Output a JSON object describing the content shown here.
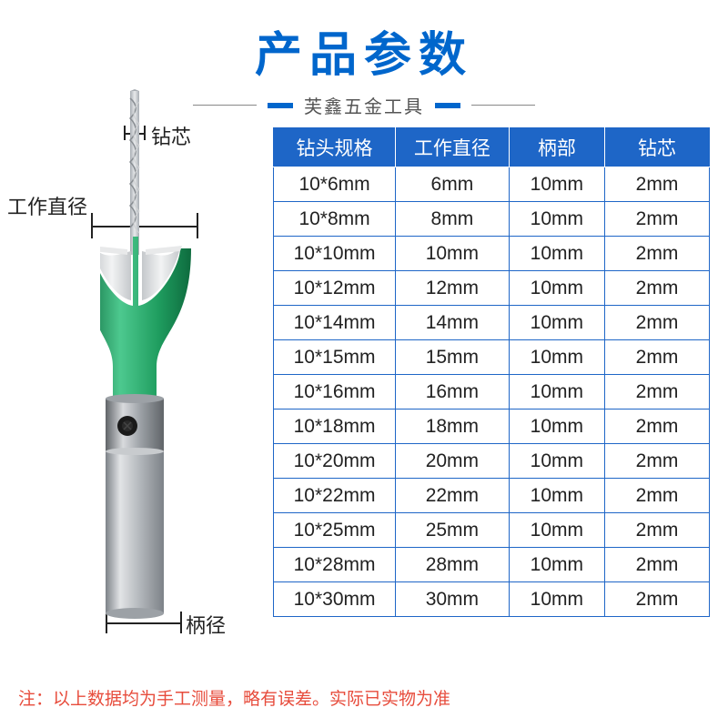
{
  "header": {
    "title": "产品参数",
    "subtitle": "芙鑫五金工具",
    "title_color": "#0066cc",
    "title_fontsize": 52,
    "subtitle_fontsize": 20,
    "subtitle_color": "#555555"
  },
  "labels": {
    "core": "钻芯",
    "work_diameter": "工作直径",
    "shank_diameter": "柄径",
    "label_fontsize": 22,
    "label_color": "#222222"
  },
  "table": {
    "header_bg": "#1e66c7",
    "header_color": "#ffffff",
    "border_color": "#1e66c7",
    "cell_bg": "#ffffff",
    "cell_color": "#222222",
    "cell_fontsize": 21,
    "columns": [
      "钻头规格",
      "工作直径",
      "柄部",
      "钻芯"
    ],
    "column_widths_pct": [
      28,
      26,
      22,
      24
    ],
    "rows": [
      [
        "10*6mm",
        "6mm",
        "10mm",
        "2mm"
      ],
      [
        "10*8mm",
        "8mm",
        "10mm",
        "2mm"
      ],
      [
        "10*10mm",
        "10mm",
        "10mm",
        "2mm"
      ],
      [
        "10*12mm",
        "12mm",
        "10mm",
        "2mm"
      ],
      [
        "10*14mm",
        "14mm",
        "10mm",
        "2mm"
      ],
      [
        "10*15mm",
        "15mm",
        "10mm",
        "2mm"
      ],
      [
        "10*16mm",
        "16mm",
        "10mm",
        "2mm"
      ],
      [
        "10*18mm",
        "18mm",
        "10mm",
        "2mm"
      ],
      [
        "10*20mm",
        "20mm",
        "10mm",
        "2mm"
      ],
      [
        "10*22mm",
        "22mm",
        "10mm",
        "2mm"
      ],
      [
        "10*25mm",
        "25mm",
        "10mm",
        "2mm"
      ],
      [
        "10*28mm",
        "28mm",
        "10mm",
        "2mm"
      ],
      [
        "10*30mm",
        "30mm",
        "10mm",
        "2mm"
      ]
    ]
  },
  "footnote": {
    "text": "注：以上数据均为手工测量，略有误差。实际已实物为准",
    "color": "#e74c3c",
    "fontsize": 19
  },
  "product_colors": {
    "body_green_light": "#4dc98f",
    "body_green_dark": "#1f9d5f",
    "body_green_shadow": "#0e6b3e",
    "shank_light": "#e2e4e6",
    "shank_mid": "#b8bcc0",
    "shank_dark": "#7d8288",
    "drill_light": "#e8eaec",
    "drill_dark": "#a8adb3",
    "cutter_light": "#f2f3f4",
    "cutter_dark": "#c5c8cb",
    "hole_color": "#1a1a1a"
  }
}
